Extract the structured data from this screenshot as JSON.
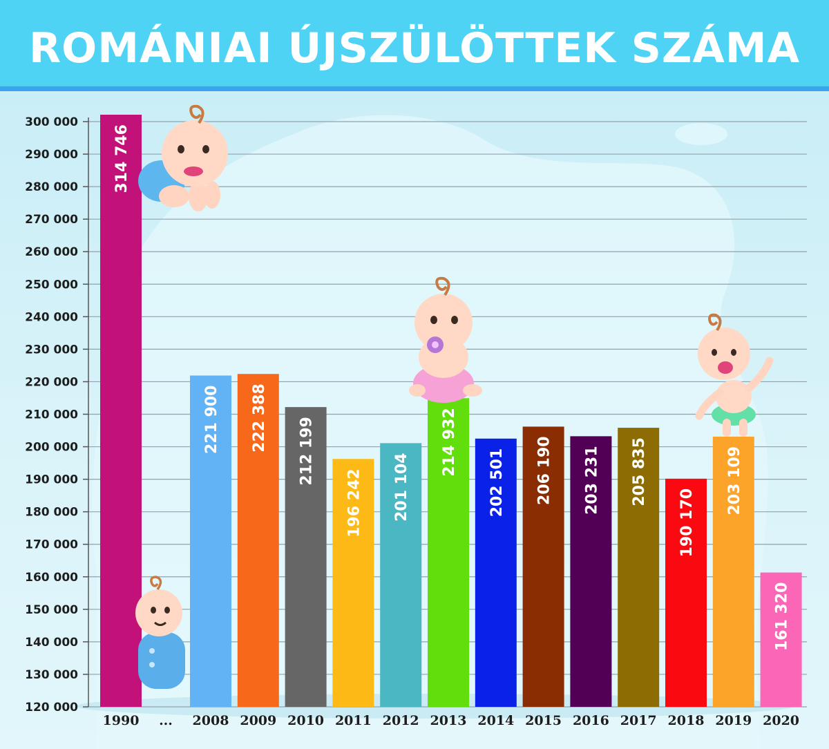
{
  "header": {
    "title": "ROMÁNIAI ÚJSZÜLÖTTEK SZÁMA"
  },
  "chart_data": {
    "type": "bar",
    "title": "ROMÁNIAI ÚJSZÜLÖTTEK SZÁMA",
    "xlabel": "",
    "ylabel": "",
    "ylim": [
      120000,
      300000
    ],
    "ytick_step": 10000,
    "yticks": [
      "120 000",
      "130 000",
      "140 000",
      "150 000",
      "160 000",
      "170 000",
      "180 000",
      "190 000",
      "200 000",
      "210 000",
      "220 000",
      "230 000",
      "240 000",
      "250 000",
      "260 000",
      "270 000",
      "280 000",
      "290 000",
      "300 000"
    ],
    "grid": true,
    "legend": "none",
    "axis_break_label": "...",
    "categories": [
      "1990",
      "2008",
      "2009",
      "2010",
      "2011",
      "2012",
      "2013",
      "2014",
      "2015",
      "2016",
      "2017",
      "2018",
      "2019",
      "2020"
    ],
    "values": [
      314746,
      221900,
      222388,
      212199,
      196242,
      201104,
      214932,
      202501,
      206190,
      203231,
      205835,
      190170,
      203109,
      161320
    ],
    "value_labels": [
      "314 746",
      "221 900",
      "222 388",
      "212 199",
      "196 242",
      "201 104",
      "214 932",
      "202 501",
      "206 190",
      "203 231",
      "205 835",
      "190 170",
      "203 109",
      "161 320"
    ],
    "colors": [
      "#c2127a",
      "#62b2f6",
      "#f7681b",
      "#666666",
      "#fdb916",
      "#4bb7c2",
      "#62de0c",
      "#0a22e8",
      "#8a2d02",
      "#520055",
      "#8c6c03",
      "#fa0a10",
      "#fca42a",
      "#fb66b7"
    ]
  }
}
